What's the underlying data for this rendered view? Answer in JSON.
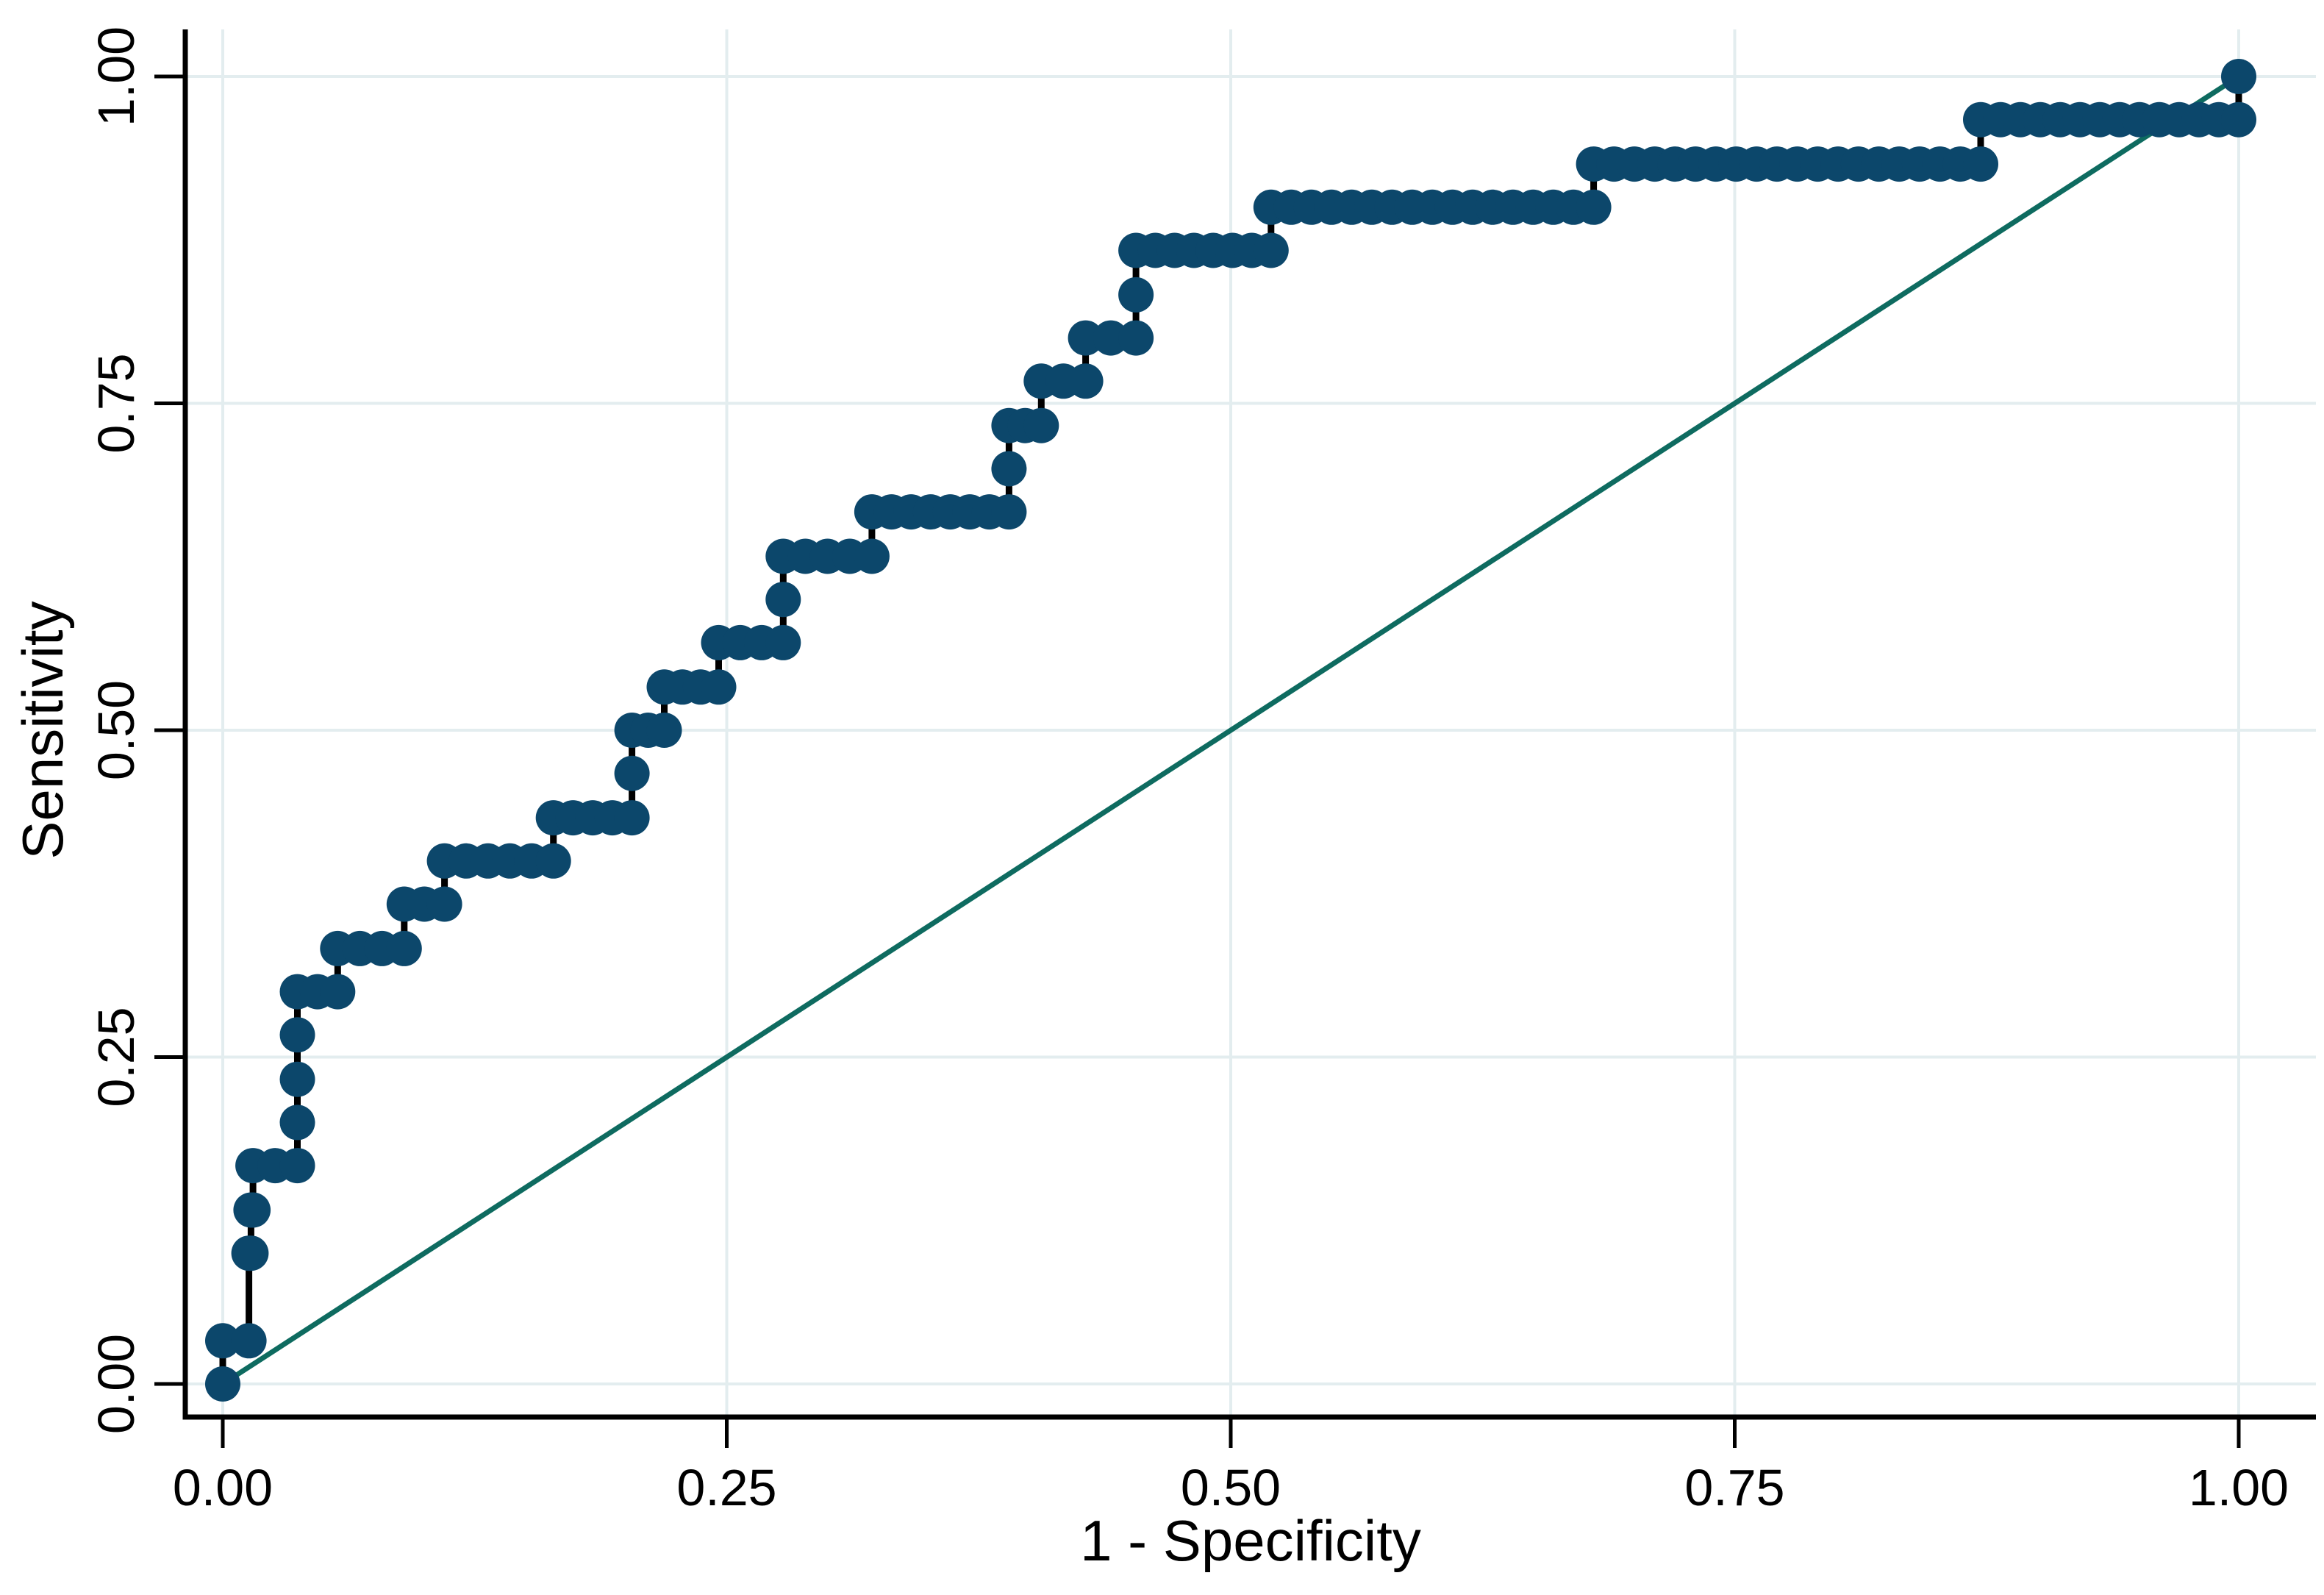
{
  "chart_data": {
    "type": "line",
    "subtype": "roc-step-scatter",
    "title": "",
    "xlabel": "1 - Specificity",
    "ylabel": "Sensitivity",
    "xlim": [
      0,
      1
    ],
    "ylim": [
      0,
      1
    ],
    "grid": true,
    "x_ticks": [
      {
        "value": 0.0,
        "label": "0.00"
      },
      {
        "value": 0.25,
        "label": "0.25"
      },
      {
        "value": 0.5,
        "label": "0.50"
      },
      {
        "value": 0.75,
        "label": "0.75"
      },
      {
        "value": 1.0,
        "label": "1.00"
      }
    ],
    "y_ticks": [
      {
        "value": 0.0,
        "label": "0.00"
      },
      {
        "value": 0.25,
        "label": "0.25"
      },
      {
        "value": 0.5,
        "label": "0.50"
      },
      {
        "value": 0.75,
        "label": "0.75"
      },
      {
        "value": 1.0,
        "label": "1.00"
      }
    ],
    "colors": {
      "roc_marker": "#0c476b",
      "roc_connector": "#000000",
      "reference_line": "#0e6b60",
      "gridline": "#e3edef",
      "axis": "#000000",
      "background": "#ffffff"
    },
    "series": [
      {
        "name": "ROC curve",
        "type": "step-scatter",
        "runs": [
          {
            "sensitivity": 0.0,
            "fpr_start": 0.0,
            "fpr_end": 0.0
          },
          {
            "sensitivity": 0.033,
            "fpr_start": 0.0,
            "fpr_end": 0.013
          },
          {
            "sensitivity": 0.1,
            "fpr_start": 0.013,
            "fpr_end": 0.014
          },
          {
            "sensitivity": 0.133,
            "fpr_start": 0.014,
            "fpr_end": 0.015
          },
          {
            "sensitivity": 0.167,
            "fpr_start": 0.015,
            "fpr_end": 0.037
          },
          {
            "sensitivity": 0.2,
            "fpr_start": 0.037,
            "fpr_end": 0.037
          },
          {
            "sensitivity": 0.233,
            "fpr_start": 0.037,
            "fpr_end": 0.037
          },
          {
            "sensitivity": 0.267,
            "fpr_start": 0.037,
            "fpr_end": 0.037
          },
          {
            "sensitivity": 0.3,
            "fpr_start": 0.037,
            "fpr_end": 0.057
          },
          {
            "sensitivity": 0.333,
            "fpr_start": 0.057,
            "fpr_end": 0.09
          },
          {
            "sensitivity": 0.367,
            "fpr_start": 0.09,
            "fpr_end": 0.11
          },
          {
            "sensitivity": 0.4,
            "fpr_start": 0.11,
            "fpr_end": 0.164
          },
          {
            "sensitivity": 0.433,
            "fpr_start": 0.164,
            "fpr_end": 0.203
          },
          {
            "sensitivity": 0.467,
            "fpr_start": 0.203,
            "fpr_end": 0.203
          },
          {
            "sensitivity": 0.5,
            "fpr_start": 0.203,
            "fpr_end": 0.219
          },
          {
            "sensitivity": 0.533,
            "fpr_start": 0.219,
            "fpr_end": 0.246
          },
          {
            "sensitivity": 0.567,
            "fpr_start": 0.246,
            "fpr_end": 0.278
          },
          {
            "sensitivity": 0.6,
            "fpr_start": 0.278,
            "fpr_end": 0.278
          },
          {
            "sensitivity": 0.633,
            "fpr_start": 0.278,
            "fpr_end": 0.322
          },
          {
            "sensitivity": 0.667,
            "fpr_start": 0.322,
            "fpr_end": 0.39
          },
          {
            "sensitivity": 0.7,
            "fpr_start": 0.39,
            "fpr_end": 0.39
          },
          {
            "sensitivity": 0.733,
            "fpr_start": 0.39,
            "fpr_end": 0.406
          },
          {
            "sensitivity": 0.767,
            "fpr_start": 0.406,
            "fpr_end": 0.428
          },
          {
            "sensitivity": 0.8,
            "fpr_start": 0.428,
            "fpr_end": 0.453
          },
          {
            "sensitivity": 0.833,
            "fpr_start": 0.453,
            "fpr_end": 0.453
          },
          {
            "sensitivity": 0.867,
            "fpr_start": 0.453,
            "fpr_end": 0.52
          },
          {
            "sensitivity": 0.9,
            "fpr_start": 0.52,
            "fpr_end": 0.68
          },
          {
            "sensitivity": 0.933,
            "fpr_start": 0.68,
            "fpr_end": 0.872
          },
          {
            "sensitivity": 0.967,
            "fpr_start": 0.872,
            "fpr_end": 1.0
          },
          {
            "sensitivity": 1.0,
            "fpr_start": 1.0,
            "fpr_end": 1.0
          }
        ]
      },
      {
        "name": "Reference diagonal",
        "type": "line",
        "points": [
          [
            0,
            0
          ],
          [
            1,
            1
          ]
        ]
      }
    ]
  }
}
